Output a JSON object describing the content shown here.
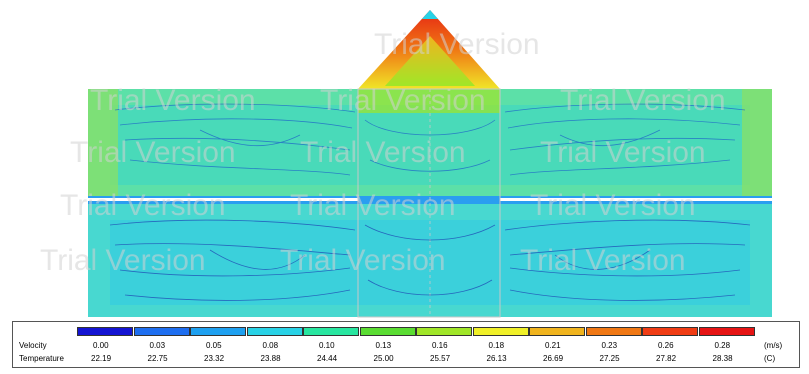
{
  "watermark": "Trial Version",
  "legend": {
    "velocity_label": "Velocity",
    "temperature_label": "Temperature",
    "velocity_unit": "(m/s)",
    "temperature_unit": "(C)",
    "colors": [
      "#1414d2",
      "#1e6ef0",
      "#1ea0f0",
      "#28d2e6",
      "#28e6a0",
      "#5adc32",
      "#a0e628",
      "#f0f028",
      "#f0b41e",
      "#f07814",
      "#f03c14",
      "#e61414"
    ],
    "velocity_values": [
      "0.00",
      "0.03",
      "0.05",
      "0.08",
      "0.10",
      "0.13",
      "0.16",
      "0.18",
      "0.21",
      "0.23",
      "0.26",
      "0.28"
    ],
    "temperature_values": [
      "22.19",
      "22.75",
      "23.32",
      "23.88",
      "24.44",
      "25.00",
      "25.57",
      "26.13",
      "26.69",
      "27.25",
      "27.82",
      "28.38"
    ]
  }
}
